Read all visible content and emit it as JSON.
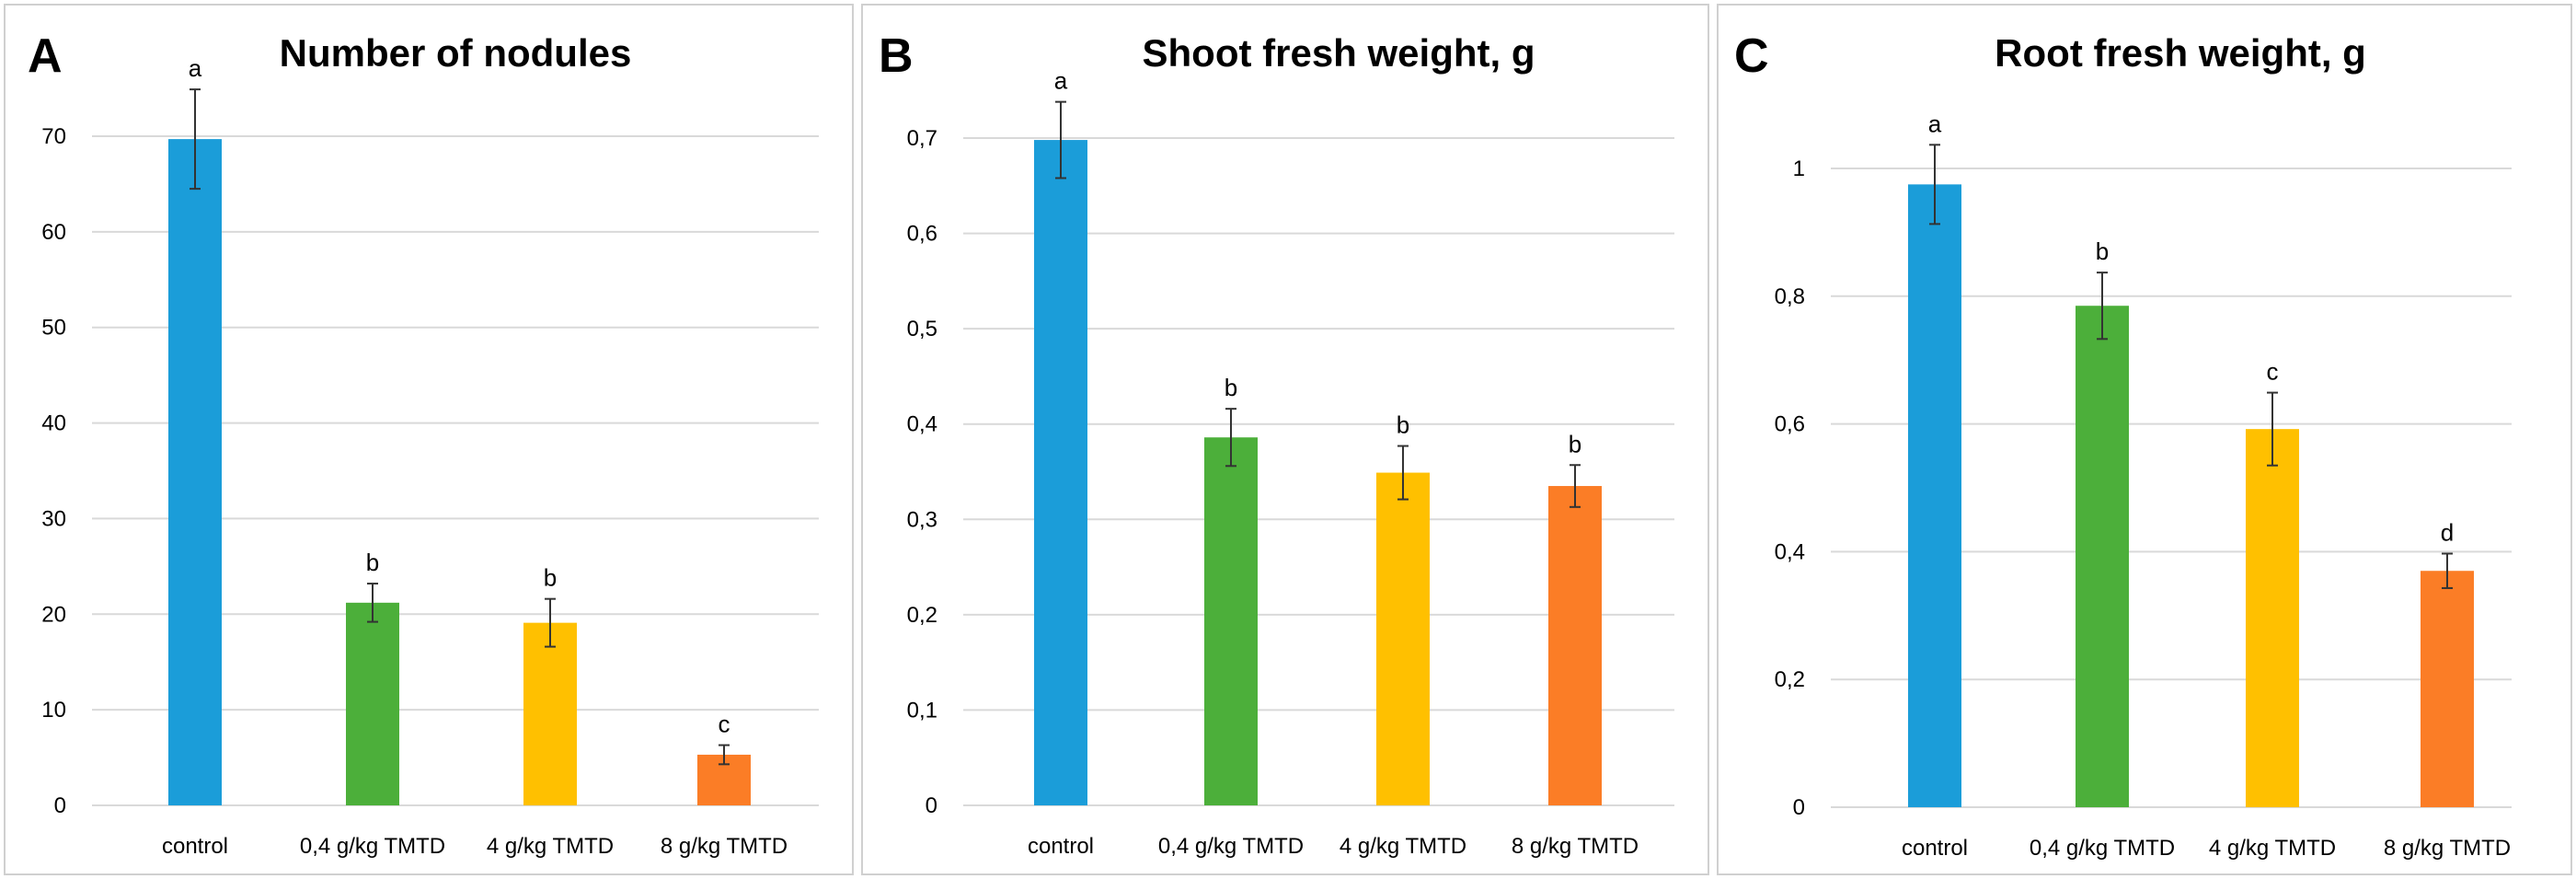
{
  "chart_data": [
    {
      "type": "bar",
      "panel": "A",
      "title": "Number of nodules",
      "categories": [
        "control",
        "0,4 g/kg TMTD",
        "4 g/kg TMTD",
        "8 g/kg TMTD"
      ],
      "values": [
        69.7,
        21.2,
        19.1,
        5.3
      ],
      "errors": [
        5.2,
        2.0,
        2.5,
        1.0
      ],
      "significance": [
        "a",
        "b",
        "b",
        "c"
      ],
      "colors": [
        "#1b9dd9",
        "#4caf3a",
        "#ffc000",
        "#fb7d26"
      ],
      "ylim": [
        0,
        70
      ],
      "yticks": [
        0,
        10,
        20,
        30,
        40,
        50,
        60,
        70
      ],
      "ytick_labels": [
        "0",
        "10",
        "20",
        "30",
        "40",
        "50",
        "60",
        "70"
      ],
      "grid": true,
      "xlabel": "",
      "ylabel": ""
    },
    {
      "type": "bar",
      "panel": "B",
      "title": "Shoot fresh weight, g",
      "categories": [
        "control",
        "0,4 g/kg TMTD",
        "4 g/kg TMTD",
        "8 g/kg TMTD"
      ],
      "values": [
        0.698,
        0.386,
        0.349,
        0.335
      ],
      "errors": [
        0.04,
        0.03,
        0.028,
        0.022
      ],
      "significance": [
        "a",
        "b",
        "b",
        "b"
      ],
      "colors": [
        "#1b9dd9",
        "#4caf3a",
        "#ffc000",
        "#fb7d26"
      ],
      "ylim": [
        0,
        0.7
      ],
      "yticks": [
        0,
        0.1,
        0.2,
        0.3,
        0.4,
        0.5,
        0.6,
        0.7
      ],
      "ytick_labels": [
        "0",
        "0,1",
        "0,2",
        "0,3",
        "0,4",
        "0,5",
        "0,6",
        "0,7"
      ],
      "grid": true,
      "xlabel": "",
      "ylabel": ""
    },
    {
      "type": "bar",
      "panel": "C",
      "title": "Root fresh weight, g",
      "categories": [
        "control",
        "0,4 g/kg TMTD",
        "4 g/kg TMTD",
        "8 g/kg TMTD"
      ],
      "values": [
        0.975,
        0.785,
        0.592,
        0.37
      ],
      "errors": [
        0.062,
        0.052,
        0.057,
        0.027
      ],
      "significance": [
        "a",
        "b",
        "c",
        "d"
      ],
      "colors": [
        "#1b9dd9",
        "#4caf3a",
        "#ffc000",
        "#fb7d26"
      ],
      "ylim": [
        0,
        1
      ],
      "yticks": [
        0,
        0.2,
        0.4,
        0.6,
        0.8,
        1
      ],
      "ytick_labels": [
        "0",
        "0,2",
        "0,4",
        "0,6",
        "0,8",
        "1"
      ],
      "grid": true,
      "xlabel": "",
      "ylabel": ""
    }
  ]
}
